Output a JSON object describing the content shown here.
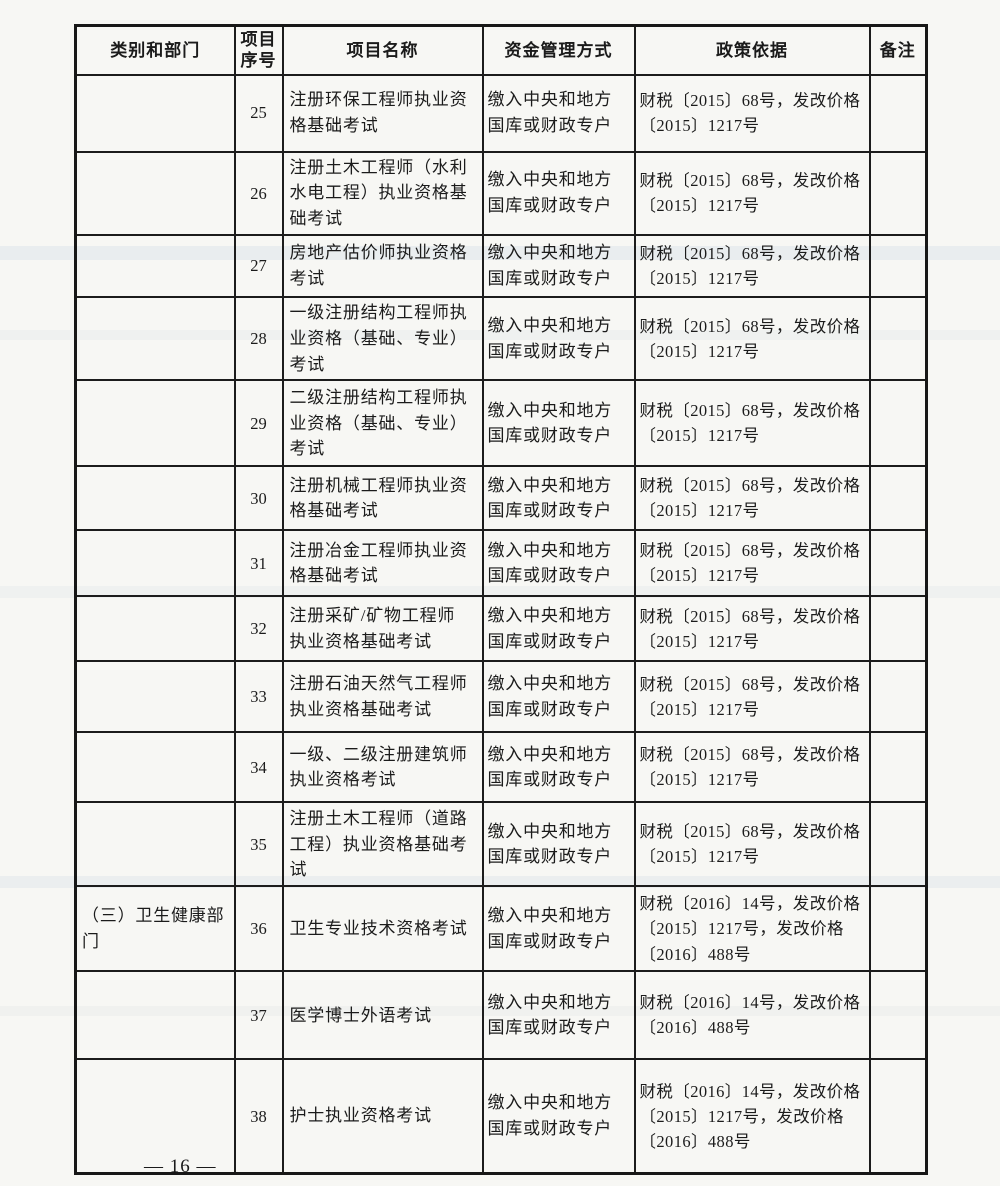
{
  "page": {
    "number_label": "— 16 —"
  },
  "table": {
    "headers": {
      "category": "类别和部门",
      "no": "项目序号",
      "name": "项目名称",
      "fund": "资金管理方式",
      "policy": "政策依据",
      "note": "备注"
    },
    "rows": [
      {
        "category": "",
        "no": "25",
        "name": "注册环保工程师执业资格基础考试",
        "fund": "缴入中央和地方国库或财政专户",
        "policy": "财税〔2015〕68号，发改价格〔2015〕1217号",
        "note": ""
      },
      {
        "category": "",
        "no": "26",
        "name": "注册土木工程师（水利水电工程）执业资格基础考试",
        "fund": "缴入中央和地方国库或财政专户",
        "policy": "财税〔2015〕68号，发改价格〔2015〕1217号",
        "note": ""
      },
      {
        "category": "",
        "no": "27",
        "name": "房地产估价师执业资格考试",
        "fund": "缴入中央和地方国库或财政专户",
        "policy": "财税〔2015〕68号，发改价格〔2015〕1217号",
        "note": ""
      },
      {
        "category": "",
        "no": "28",
        "name": "一级注册结构工程师执业资格（基础、专业）考试",
        "fund": "缴入中央和地方国库或财政专户",
        "policy": "财税〔2015〕68号，发改价格〔2015〕1217号",
        "note": ""
      },
      {
        "category": "",
        "no": "29",
        "name": "二级注册结构工程师执业资格（基础、专业）考试",
        "fund": "缴入中央和地方国库或财政专户",
        "policy": "财税〔2015〕68号，发改价格〔2015〕1217号",
        "note": ""
      },
      {
        "category": "",
        "no": "30",
        "name": "注册机械工程师执业资格基础考试",
        "fund": "缴入中央和地方国库或财政专户",
        "policy": "财税〔2015〕68号，发改价格〔2015〕1217号",
        "note": ""
      },
      {
        "category": "",
        "no": "31",
        "name": "注册冶金工程师执业资格基础考试",
        "fund": "缴入中央和地方国库或财政专户",
        "policy": "财税〔2015〕68号，发改价格〔2015〕1217号",
        "note": ""
      },
      {
        "category": "",
        "no": "32",
        "name": "注册采矿/矿物工程师执业资格基础考试",
        "fund": "缴入中央和地方国库或财政专户",
        "policy": "财税〔2015〕68号，发改价格〔2015〕1217号",
        "note": ""
      },
      {
        "category": "",
        "no": "33",
        "name": "注册石油天然气工程师执业资格基础考试",
        "fund": "缴入中央和地方国库或财政专户",
        "policy": "财税〔2015〕68号，发改价格〔2015〕1217号",
        "note": ""
      },
      {
        "category": "",
        "no": "34",
        "name": "一级、二级注册建筑师执业资格考试",
        "fund": "缴入中央和地方国库或财政专户",
        "policy": "财税〔2015〕68号，发改价格〔2015〕1217号",
        "note": ""
      },
      {
        "category": "",
        "no": "35",
        "name": "注册土木工程师（道路工程）执业资格基础考试",
        "fund": "缴入中央和地方国库或财政专户",
        "policy": "财税〔2015〕68号，发改价格〔2015〕1217号",
        "note": ""
      },
      {
        "category": "（三）卫生健康部门",
        "no": "36",
        "name": "卫生专业技术资格考试",
        "fund": "缴入中央和地方国库或财政专户",
        "policy": "财税〔2016〕14号，发改价格〔2015〕1217号，发改价格〔2016〕488号",
        "note": ""
      },
      {
        "category": "",
        "no": "37",
        "name": "医学博士外语考试",
        "fund": "缴入中央和地方国库或财政专户",
        "policy": "财税〔2016〕14号，发改价格〔2016〕488号",
        "note": ""
      },
      {
        "category": "",
        "no": "38",
        "name": "护士执业资格考试",
        "fund": "缴入中央和地方国库或财政专户",
        "policy": "财税〔2016〕14号，发改价格〔2015〕1217号，发改价格〔2016〕488号",
        "note": ""
      }
    ]
  }
}
